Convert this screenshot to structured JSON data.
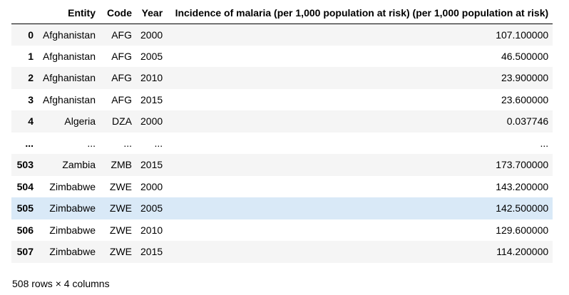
{
  "table": {
    "columns": {
      "index": "",
      "entity": "Entity",
      "code": "Code",
      "year": "Year",
      "value": "Incidence of malaria (per 1,000 population at risk) (per 1,000 population at risk)"
    },
    "rows": [
      {
        "index": "0",
        "entity": "Afghanistan",
        "code": "AFG",
        "year": "2000",
        "value": "107.100000"
      },
      {
        "index": "1",
        "entity": "Afghanistan",
        "code": "AFG",
        "year": "2005",
        "value": "46.500000"
      },
      {
        "index": "2",
        "entity": "Afghanistan",
        "code": "AFG",
        "year": "2010",
        "value": "23.900000"
      },
      {
        "index": "3",
        "entity": "Afghanistan",
        "code": "AFG",
        "year": "2015",
        "value": "23.600000"
      },
      {
        "index": "4",
        "entity": "Algeria",
        "code": "DZA",
        "year": "2000",
        "value": "0.037746"
      },
      {
        "index": "...",
        "entity": "...",
        "code": "...",
        "year": "...",
        "value": "..."
      },
      {
        "index": "503",
        "entity": "Zambia",
        "code": "ZMB",
        "year": "2015",
        "value": "173.700000"
      },
      {
        "index": "504",
        "entity": "Zimbabwe",
        "code": "ZWE",
        "year": "2000",
        "value": "143.200000"
      },
      {
        "index": "505",
        "entity": "Zimbabwe",
        "code": "ZWE",
        "year": "2005",
        "value": "142.500000"
      },
      {
        "index": "506",
        "entity": "Zimbabwe",
        "code": "ZWE",
        "year": "2010",
        "value": "129.600000"
      },
      {
        "index": "507",
        "entity": "Zimbabwe",
        "code": "ZWE",
        "year": "2015",
        "value": "114.200000"
      }
    ],
    "highlighted_row": 8
  },
  "footer": {
    "shape_text": "508 rows × 4 columns"
  },
  "colors": {
    "stripe": "#f5f5f5",
    "hover": "#d9e9f7",
    "header_border": "#000000"
  }
}
